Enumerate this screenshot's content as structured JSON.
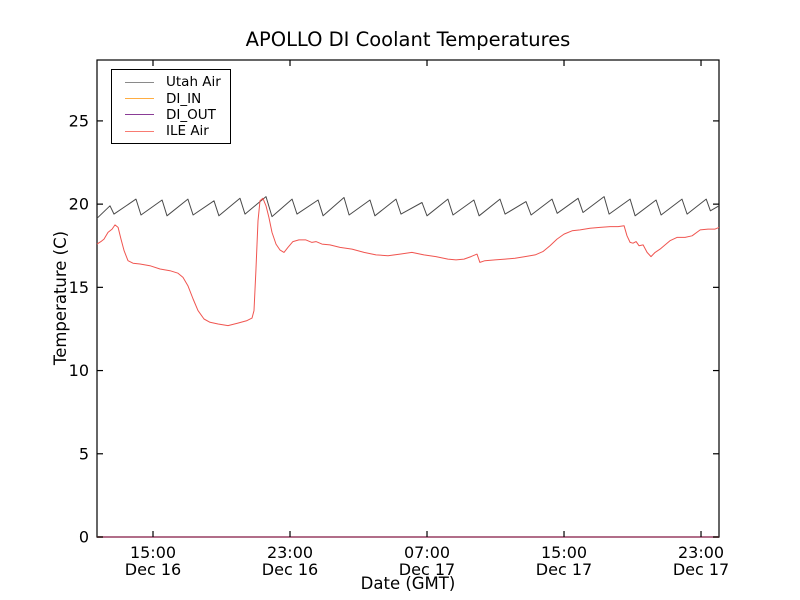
{
  "figure": {
    "background": "#ffffff",
    "spine_color": "#000000"
  },
  "chart_data": {
    "type": "line",
    "title": "APOLLO DI Coolant Temperatures",
    "xlabel": "Date (GMT)",
    "ylabel": "Temperature (C)",
    "x_unit": "hours since Dec 16 00:00 GMT",
    "xlim": [
      11.73,
      48.05
    ],
    "ylim": [
      0,
      28.66
    ],
    "grid": false,
    "legend_position": "upper-left",
    "yticks": [
      0,
      5,
      10,
      15,
      20,
      25
    ],
    "xticks": [
      {
        "t": 15,
        "time": "15:00",
        "date": "Dec 16"
      },
      {
        "t": 23,
        "time": "23:00",
        "date": "Dec 16"
      },
      {
        "t": 31,
        "time": "07:00",
        "date": "Dec 17"
      },
      {
        "t": 39,
        "time": "15:00",
        "date": "Dec 17"
      },
      {
        "t": 47,
        "time": "23:00",
        "date": "Dec 17"
      }
    ],
    "series": [
      {
        "name": "Utah Air",
        "color": "#4a4a4a",
        "legend_color": "#8a8a8a",
        "width": 1.0,
        "opacity": 1.0,
        "points": [
          [
            11.73,
            19.15
          ],
          [
            12.49,
            19.9
          ],
          [
            12.72,
            19.4
          ],
          [
            14.01,
            20.3
          ],
          [
            14.3,
            19.35
          ],
          [
            15.53,
            20.25
          ],
          [
            15.82,
            19.3
          ],
          [
            17.04,
            20.3
          ],
          [
            17.34,
            19.35
          ],
          [
            18.56,
            20.2
          ],
          [
            18.85,
            19.3
          ],
          [
            20.08,
            20.35
          ],
          [
            20.37,
            19.4
          ],
          [
            21.6,
            20.45
          ],
          [
            21.95,
            19.25
          ],
          [
            23.12,
            20.3
          ],
          [
            23.41,
            19.4
          ],
          [
            24.64,
            20.25
          ],
          [
            24.93,
            19.3
          ],
          [
            26.15,
            20.4
          ],
          [
            26.45,
            19.35
          ],
          [
            27.67,
            20.25
          ],
          [
            27.96,
            19.3
          ],
          [
            29.19,
            20.3
          ],
          [
            29.48,
            19.4
          ],
          [
            30.71,
            20.1
          ],
          [
            31.0,
            19.3
          ],
          [
            32.22,
            20.3
          ],
          [
            32.52,
            19.35
          ],
          [
            33.74,
            20.25
          ],
          [
            34.04,
            19.3
          ],
          [
            35.26,
            20.3
          ],
          [
            35.56,
            19.4
          ],
          [
            36.78,
            20.15
          ],
          [
            37.08,
            19.35
          ],
          [
            38.3,
            20.3
          ],
          [
            38.6,
            19.45
          ],
          [
            39.82,
            20.35
          ],
          [
            40.11,
            19.5
          ],
          [
            41.34,
            20.45
          ],
          [
            41.63,
            19.4
          ],
          [
            42.86,
            20.3
          ],
          [
            43.15,
            19.3
          ],
          [
            44.38,
            20.25
          ],
          [
            44.67,
            19.35
          ],
          [
            45.89,
            20.3
          ],
          [
            46.19,
            19.4
          ],
          [
            47.3,
            20.3
          ],
          [
            47.55,
            19.6
          ],
          [
            48.05,
            19.9
          ]
        ]
      },
      {
        "name": "DI_IN",
        "color": "#ffad42",
        "legend_color": "#ffad42",
        "width": 1.4,
        "opacity": 1.0,
        "points": [
          [
            11.73,
            0
          ],
          [
            48.05,
            0
          ]
        ]
      },
      {
        "name": "DI_OUT",
        "color": "#8a3c96",
        "legend_color": "#8a3c96",
        "width": 1.4,
        "opacity": 0.8,
        "points": [
          [
            11.73,
            0
          ],
          [
            48.05,
            0
          ]
        ]
      },
      {
        "name": "ILE Air",
        "color": "#f05550",
        "legend_color": "#f87b72",
        "width": 1.0,
        "opacity": 1.0,
        "points": [
          [
            11.73,
            17.6
          ],
          [
            11.96,
            17.75
          ],
          [
            12.14,
            17.9
          ],
          [
            12.37,
            18.3
          ],
          [
            12.61,
            18.5
          ],
          [
            12.78,
            18.75
          ],
          [
            12.96,
            18.6
          ],
          [
            13.13,
            17.9
          ],
          [
            13.31,
            17.2
          ],
          [
            13.54,
            16.6
          ],
          [
            13.83,
            16.45
          ],
          [
            14.24,
            16.4
          ],
          [
            14.82,
            16.3
          ],
          [
            15.41,
            16.1
          ],
          [
            15.99,
            16.0
          ],
          [
            16.46,
            15.85
          ],
          [
            16.75,
            15.6
          ],
          [
            17.04,
            15.1
          ],
          [
            17.34,
            14.3
          ],
          [
            17.63,
            13.6
          ],
          [
            17.98,
            13.1
          ],
          [
            18.33,
            12.9
          ],
          [
            18.8,
            12.8
          ],
          [
            19.38,
            12.7
          ],
          [
            19.96,
            12.85
          ],
          [
            20.49,
            13.0
          ],
          [
            20.78,
            13.15
          ],
          [
            20.9,
            13.6
          ],
          [
            21.01,
            16.0
          ],
          [
            21.13,
            19.0
          ],
          [
            21.25,
            20.2
          ],
          [
            21.42,
            20.35
          ],
          [
            21.6,
            19.9
          ],
          [
            21.77,
            19.2
          ],
          [
            21.95,
            18.3
          ],
          [
            22.18,
            17.6
          ],
          [
            22.41,
            17.25
          ],
          [
            22.65,
            17.1
          ],
          [
            22.88,
            17.4
          ],
          [
            23.17,
            17.75
          ],
          [
            23.52,
            17.85
          ],
          [
            23.93,
            17.85
          ],
          [
            24.28,
            17.7
          ],
          [
            24.52,
            17.75
          ],
          [
            24.87,
            17.6
          ],
          [
            25.33,
            17.55
          ],
          [
            25.92,
            17.4
          ],
          [
            26.62,
            17.3
          ],
          [
            27.32,
            17.1
          ],
          [
            28.02,
            16.95
          ],
          [
            28.72,
            16.9
          ],
          [
            29.42,
            17.0
          ],
          [
            30.12,
            17.1
          ],
          [
            30.82,
            16.95
          ],
          [
            31.52,
            16.85
          ],
          [
            32.22,
            16.7
          ],
          [
            32.69,
            16.65
          ],
          [
            33.16,
            16.7
          ],
          [
            33.57,
            16.85
          ],
          [
            33.92,
            17.0
          ],
          [
            34.09,
            16.5
          ],
          [
            34.38,
            16.6
          ],
          [
            34.97,
            16.65
          ],
          [
            35.56,
            16.7
          ],
          [
            36.14,
            16.75
          ],
          [
            36.72,
            16.85
          ],
          [
            37.31,
            16.95
          ],
          [
            37.77,
            17.15
          ],
          [
            38.18,
            17.5
          ],
          [
            38.59,
            17.9
          ],
          [
            39.0,
            18.2
          ],
          [
            39.47,
            18.4
          ],
          [
            39.94,
            18.45
          ],
          [
            40.52,
            18.55
          ],
          [
            41.1,
            18.6
          ],
          [
            41.69,
            18.65
          ],
          [
            42.16,
            18.65
          ],
          [
            42.51,
            18.7
          ],
          [
            42.68,
            18.1
          ],
          [
            42.86,
            17.7
          ],
          [
            43.03,
            17.65
          ],
          [
            43.21,
            17.75
          ],
          [
            43.38,
            17.5
          ],
          [
            43.62,
            17.55
          ],
          [
            43.85,
            17.1
          ],
          [
            44.08,
            16.85
          ],
          [
            44.32,
            17.1
          ],
          [
            44.61,
            17.3
          ],
          [
            44.9,
            17.55
          ],
          [
            45.19,
            17.8
          ],
          [
            45.6,
            18.0
          ],
          [
            46.07,
            18.0
          ],
          [
            46.48,
            18.1
          ],
          [
            46.95,
            18.45
          ],
          [
            47.41,
            18.5
          ],
          [
            47.82,
            18.5
          ],
          [
            48.05,
            18.6
          ]
        ]
      }
    ]
  }
}
